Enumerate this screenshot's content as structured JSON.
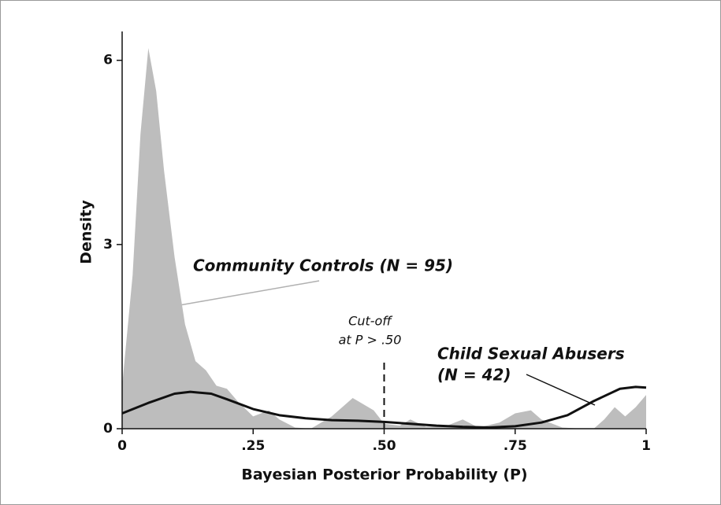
{
  "chart_data": {
    "type": "density",
    "xlabel": "Bayesian Posterior Probability (P)",
    "ylabel": "Density",
    "xlim": [
      0,
      1
    ],
    "ylim": [
      0,
      6.47
    ],
    "xticks": [
      0,
      {
        "value": 0.25,
        "label": ".25"
      },
      {
        "value": 0.5,
        "label": ".50"
      },
      {
        "value": 0.75,
        "label": ".75"
      },
      1
    ],
    "yticks": [
      0,
      3,
      6
    ],
    "series": [
      {
        "label": [
          "Community Controls (N = 95)"
        ],
        "style": "area",
        "color": "#bdbdbd",
        "text_color": "#9a9a9a",
        "x": [
          0,
          0.02,
          0.035,
          0.05,
          0.065,
          0.08,
          0.1,
          0.12,
          0.14,
          0.16,
          0.18,
          0.2,
          0.22,
          0.25,
          0.28,
          0.3,
          0.33,
          0.36,
          0.4,
          0.44,
          0.48,
          0.5,
          0.53,
          0.55,
          0.58,
          0.62,
          0.65,
          0.68,
          0.72,
          0.75,
          0.78,
          0.8,
          0.84,
          0.88,
          0.9,
          0.92,
          0.94,
          0.96,
          0.98,
          1
        ],
        "values": [
          0.7,
          2.5,
          4.8,
          6.2,
          5.5,
          4.2,
          2.8,
          1.7,
          1.1,
          0.95,
          0.7,
          0.65,
          0.45,
          0.2,
          0.3,
          0.15,
          0.02,
          0,
          0.2,
          0.5,
          0.3,
          0.08,
          0.05,
          0.15,
          0.03,
          0.05,
          0.15,
          0.02,
          0.1,
          0.25,
          0.3,
          0.15,
          0.02,
          0,
          0,
          0.15,
          0.35,
          0.2,
          0.35,
          0.55
        ]
      },
      {
        "label": [
          "Child Sexual Abusers",
          "(N = 42)"
        ],
        "style": "line",
        "color": "#111111",
        "text_color": "#111111",
        "x": [
          0,
          0.05,
          0.1,
          0.13,
          0.17,
          0.2,
          0.25,
          0.3,
          0.35,
          0.4,
          0.45,
          0.5,
          0.55,
          0.6,
          0.65,
          0.7,
          0.75,
          0.8,
          0.85,
          0.9,
          0.95,
          0.98,
          1
        ],
        "values": [
          0.25,
          0.42,
          0.57,
          0.6,
          0.57,
          0.48,
          0.32,
          0.22,
          0.17,
          0.14,
          0.13,
          0.11,
          0.08,
          0.05,
          0.03,
          0.02,
          0.04,
          0.1,
          0.22,
          0.45,
          0.65,
          0.68,
          0.67
        ]
      }
    ],
    "cutoff": {
      "x": 0.5,
      "y": [
        0,
        1.15
      ],
      "label": [
        "Cut-off",
        "at P > .50"
      ]
    }
  }
}
